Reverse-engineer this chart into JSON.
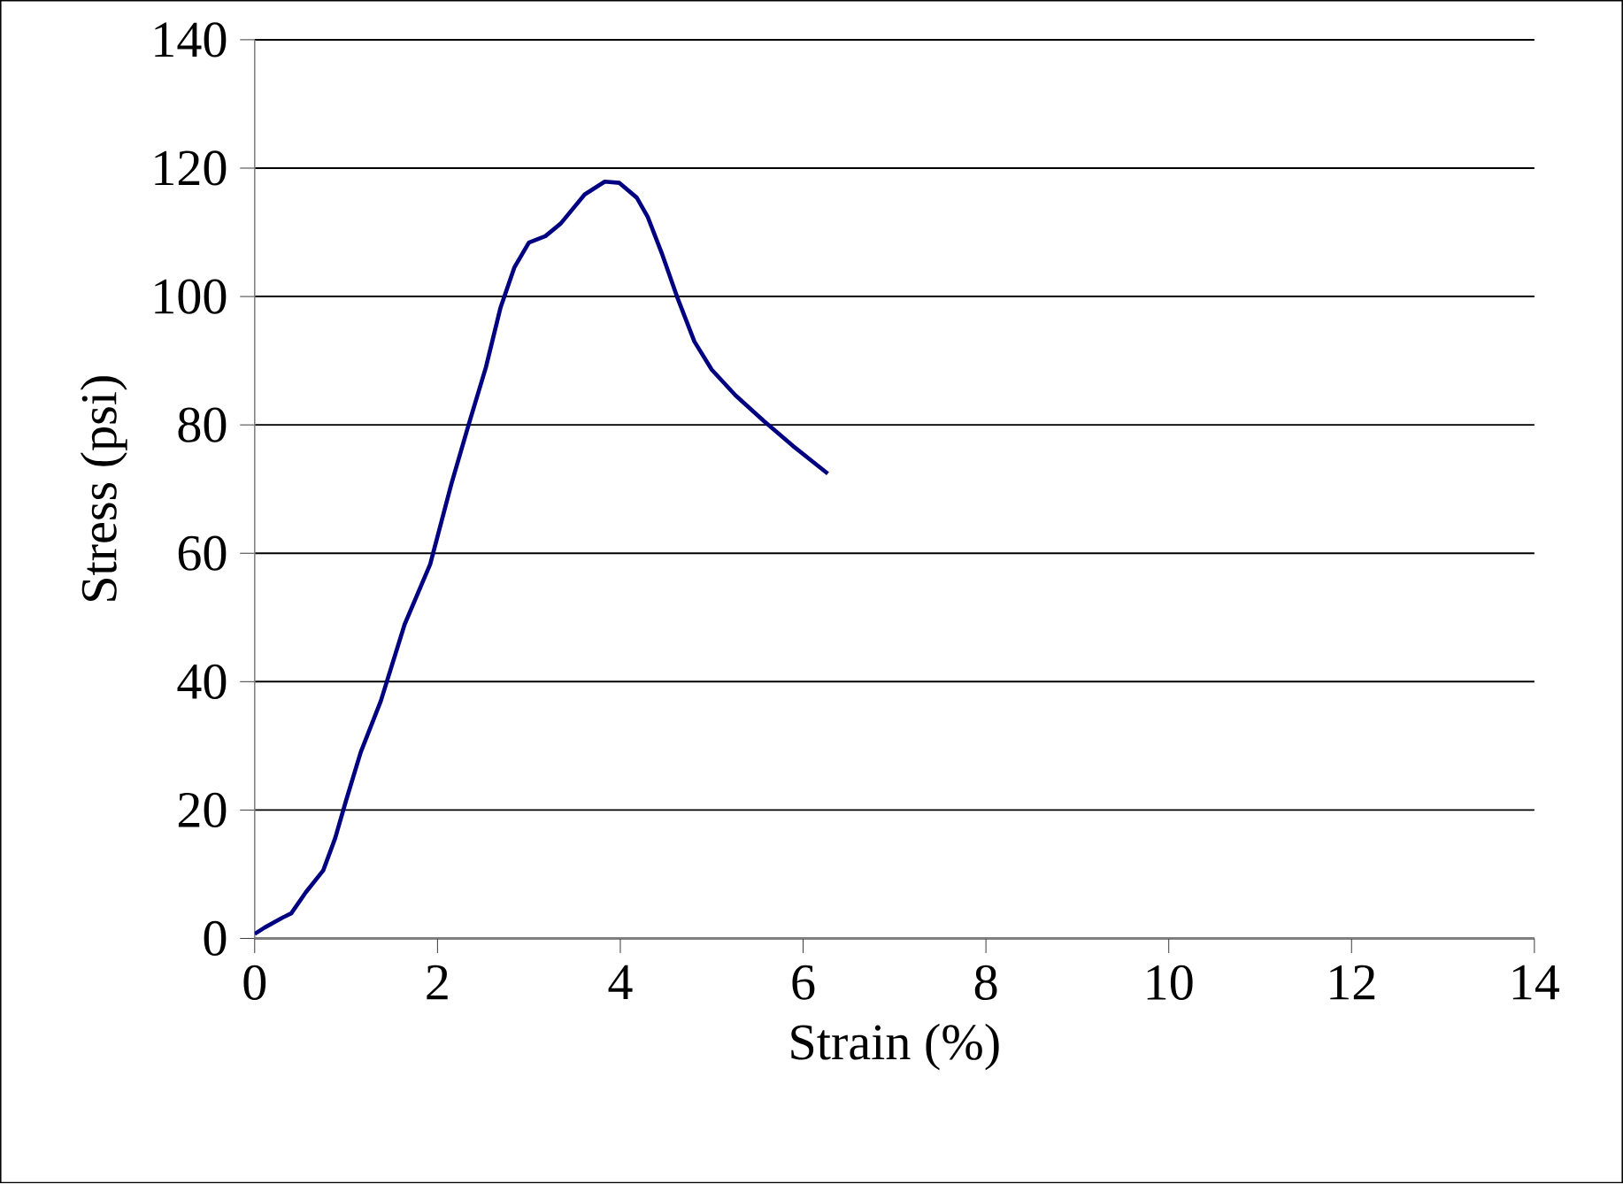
{
  "chart_data": {
    "type": "line",
    "xlabel": "Strain (%)",
    "ylabel": "Stress (psi)",
    "xlim": [
      0,
      14
    ],
    "xticks": [
      0,
      2,
      4,
      6,
      8,
      10,
      12,
      14
    ],
    "ylim": [
      0,
      140
    ],
    "yticks": [
      0,
      20,
      40,
      60,
      80,
      100,
      120,
      140
    ],
    "grid": "y",
    "series": [
      {
        "color": "#000080",
        "x": [
          0,
          0.11,
          0.3,
          0.4,
          0.56,
          0.75,
          0.88,
          1.0,
          1.16,
          1.38,
          1.64,
          1.92,
          2.15,
          2.34,
          2.53,
          2.69,
          2.84,
          3.0,
          3.18,
          3.35,
          3.61,
          3.83,
          3.99,
          4.18,
          4.3,
          4.46,
          4.62,
          4.81,
          5.0,
          5.26,
          5.57,
          5.89,
          6.27
        ],
        "values": [
          0.7,
          1.7,
          3.2,
          3.9,
          7.2,
          10.6,
          15.6,
          21.5,
          29,
          37,
          48.9,
          58.3,
          70.7,
          80,
          89,
          98.3,
          104.5,
          108.4,
          109.4,
          111.4,
          115.9,
          117.9,
          117.7,
          115.4,
          112.4,
          106.5,
          100,
          93,
          88.6,
          84.6,
          80.6,
          76.7,
          72.4
        ]
      }
    ]
  }
}
